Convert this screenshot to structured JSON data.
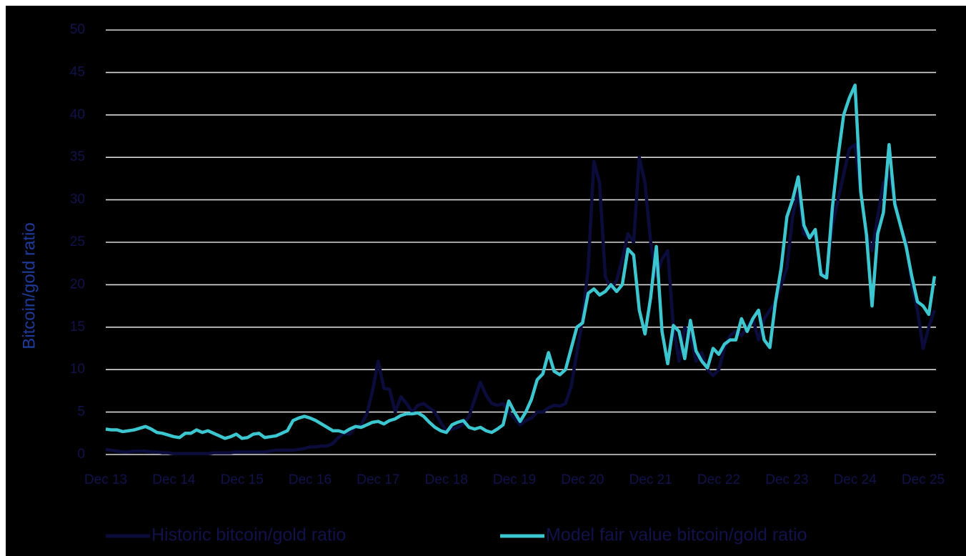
{
  "chart_data": {
    "type": "line",
    "y_label": "Bitcoin/gold ratio",
    "categories": [
      "Dec 13",
      null,
      null,
      null,
      null,
      null,
      null,
      null,
      null,
      null,
      null,
      null,
      "Dec 14",
      null,
      null,
      null,
      null,
      null,
      null,
      null,
      null,
      null,
      null,
      null,
      "Dec 15",
      null,
      null,
      null,
      null,
      null,
      null,
      null,
      null,
      null,
      null,
      null,
      "Dec 16",
      null,
      null,
      null,
      null,
      null,
      null,
      null,
      null,
      null,
      null,
      null,
      "Dec 17",
      null,
      null,
      null,
      null,
      null,
      null,
      null,
      null,
      null,
      null,
      null,
      "Dec 18",
      null,
      null,
      null,
      null,
      null,
      null,
      null,
      null,
      null,
      null,
      null,
      "Dec 19",
      null,
      null,
      null,
      null,
      null,
      null,
      null,
      null,
      null,
      null,
      null,
      "Dec 20",
      null,
      null,
      null,
      null,
      null,
      null,
      null,
      null,
      null,
      null,
      null,
      "Dec 21",
      null,
      null,
      null,
      null,
      null,
      null,
      null,
      null,
      null,
      null,
      null,
      "Dec 22",
      null,
      null,
      null,
      null,
      null,
      null,
      null,
      null,
      null,
      null,
      null,
      "Dec 23",
      null,
      null,
      null,
      null,
      null,
      null,
      null,
      null,
      null,
      null,
      null,
      "Dec 24",
      null,
      null,
      null,
      null,
      null,
      null,
      null,
      null,
      null,
      null,
      null,
      "Dec 25",
      null,
      null
    ],
    "series": [
      {
        "name": "Historic bitcoin/gold ratio",
        "color": "#0c0c3c",
        "values": [
          0.6,
          0.5,
          0.4,
          0.3,
          0.3,
          0.4,
          0.4,
          0.4,
          0.3,
          0.3,
          0.2,
          0.2,
          0.1,
          0.1,
          0.1,
          0.1,
          0.1,
          0.1,
          0.1,
          0.2,
          0.2,
          0.2,
          0.2,
          0.3,
          0.3,
          0.3,
          0.3,
          0.3,
          0.3,
          0.4,
          0.5,
          0.5,
          0.5,
          0.5,
          0.6,
          0.7,
          0.9,
          0.9,
          1.0,
          1.0,
          1.3,
          2.0,
          2.5,
          2.4,
          3.3,
          3.5,
          4.8,
          7.5,
          11.0,
          7.8,
          7.7,
          5.0,
          6.8,
          6.0,
          5.0,
          5.8,
          6.0,
          5.5,
          5.0,
          3.8,
          2.8,
          3.0,
          3.2,
          3.6,
          4.5,
          6.5,
          8.5,
          7.0,
          6.0,
          5.8,
          6.0,
          5.0,
          4.3,
          3.5,
          4.0,
          4.3,
          5.0,
          5.0,
          5.5,
          5.8,
          5.7,
          6.0,
          8.0,
          12.0,
          16.0,
          22.0,
          34.5,
          32.0,
          21.0,
          19.5,
          20.5,
          23.0,
          26.0,
          25.0,
          35.0,
          32.0,
          25.0,
          21.0,
          23.0,
          24.0,
          15.0,
          11.0,
          15.0,
          14.0,
          11.0,
          12.0,
          10.0,
          9.3,
          10.0,
          12.5,
          14.0,
          14.5,
          14.0,
          15.0,
          16.0,
          13.5,
          16.0,
          17.0,
          18.0,
          20.0,
          22.0,
          28.0,
          31.0,
          26.0,
          25.5,
          26.0,
          21.5,
          21.0,
          27.0,
          30.0,
          33.0,
          36.0,
          36.5,
          31.0,
          26.0,
          24.0,
          28.0,
          32.0,
          33.0,
          30.0,
          27.0,
          25.0,
          20.0,
          17.0,
          12.5,
          15.0,
          17.0
        ]
      },
      {
        "name": "Model fair value bitcoin/gold ratio",
        "color": "#3cc7d0",
        "values": [
          3.0,
          2.9,
          2.9,
          2.7,
          2.8,
          2.9,
          3.1,
          3.3,
          3.0,
          2.6,
          2.5,
          2.3,
          2.1,
          2.0,
          2.5,
          2.5,
          2.9,
          2.6,
          2.8,
          2.5,
          2.2,
          1.9,
          2.1,
          2.4,
          1.9,
          2.0,
          2.4,
          2.5,
          2.0,
          2.1,
          2.2,
          2.5,
          2.8,
          4.0,
          4.3,
          4.5,
          4.3,
          4.0,
          3.6,
          3.2,
          2.8,
          2.8,
          2.6,
          3.0,
          3.3,
          3.2,
          3.5,
          3.8,
          3.9,
          3.6,
          4.0,
          4.2,
          4.6,
          4.8,
          4.8,
          4.9,
          4.5,
          3.8,
          3.2,
          2.8,
          2.6,
          3.5,
          3.8,
          4.0,
          3.2,
          3.0,
          3.2,
          2.8,
          2.6,
          3.0,
          3.5,
          6.3,
          5.0,
          3.9,
          5.0,
          6.5,
          8.8,
          9.5,
          12.0,
          9.8,
          9.4,
          10.0,
          12.5,
          15.0,
          15.5,
          19.0,
          19.5,
          18.8,
          19.2,
          20.0,
          19.2,
          20.0,
          24.2,
          23.5,
          17.0,
          14.2,
          18.5,
          24.5,
          14.5,
          10.7,
          15.2,
          14.5,
          11.3,
          15.8,
          12.2,
          11.0,
          10.2,
          12.5,
          11.8,
          13.0,
          13.5,
          13.5,
          16.0,
          14.5,
          16.0,
          17.0,
          13.5,
          12.6,
          18.0,
          22.0,
          28.0,
          30.0,
          32.7,
          27.0,
          25.5,
          26.5,
          21.2,
          20.8,
          29.0,
          35.0,
          40.0,
          42.0,
          43.5,
          31.0,
          26.0,
          17.5,
          26.0,
          28.5,
          36.5,
          29.5,
          27.0,
          24.5,
          21.0,
          18.0,
          17.5,
          16.5,
          21.0
        ]
      }
    ],
    "ylim": [
      0,
      50
    ],
    "yticks": [
      0,
      5,
      10,
      15,
      20,
      25,
      30,
      35,
      40,
      45,
      50
    ],
    "grid": true,
    "legend": "bottom"
  }
}
